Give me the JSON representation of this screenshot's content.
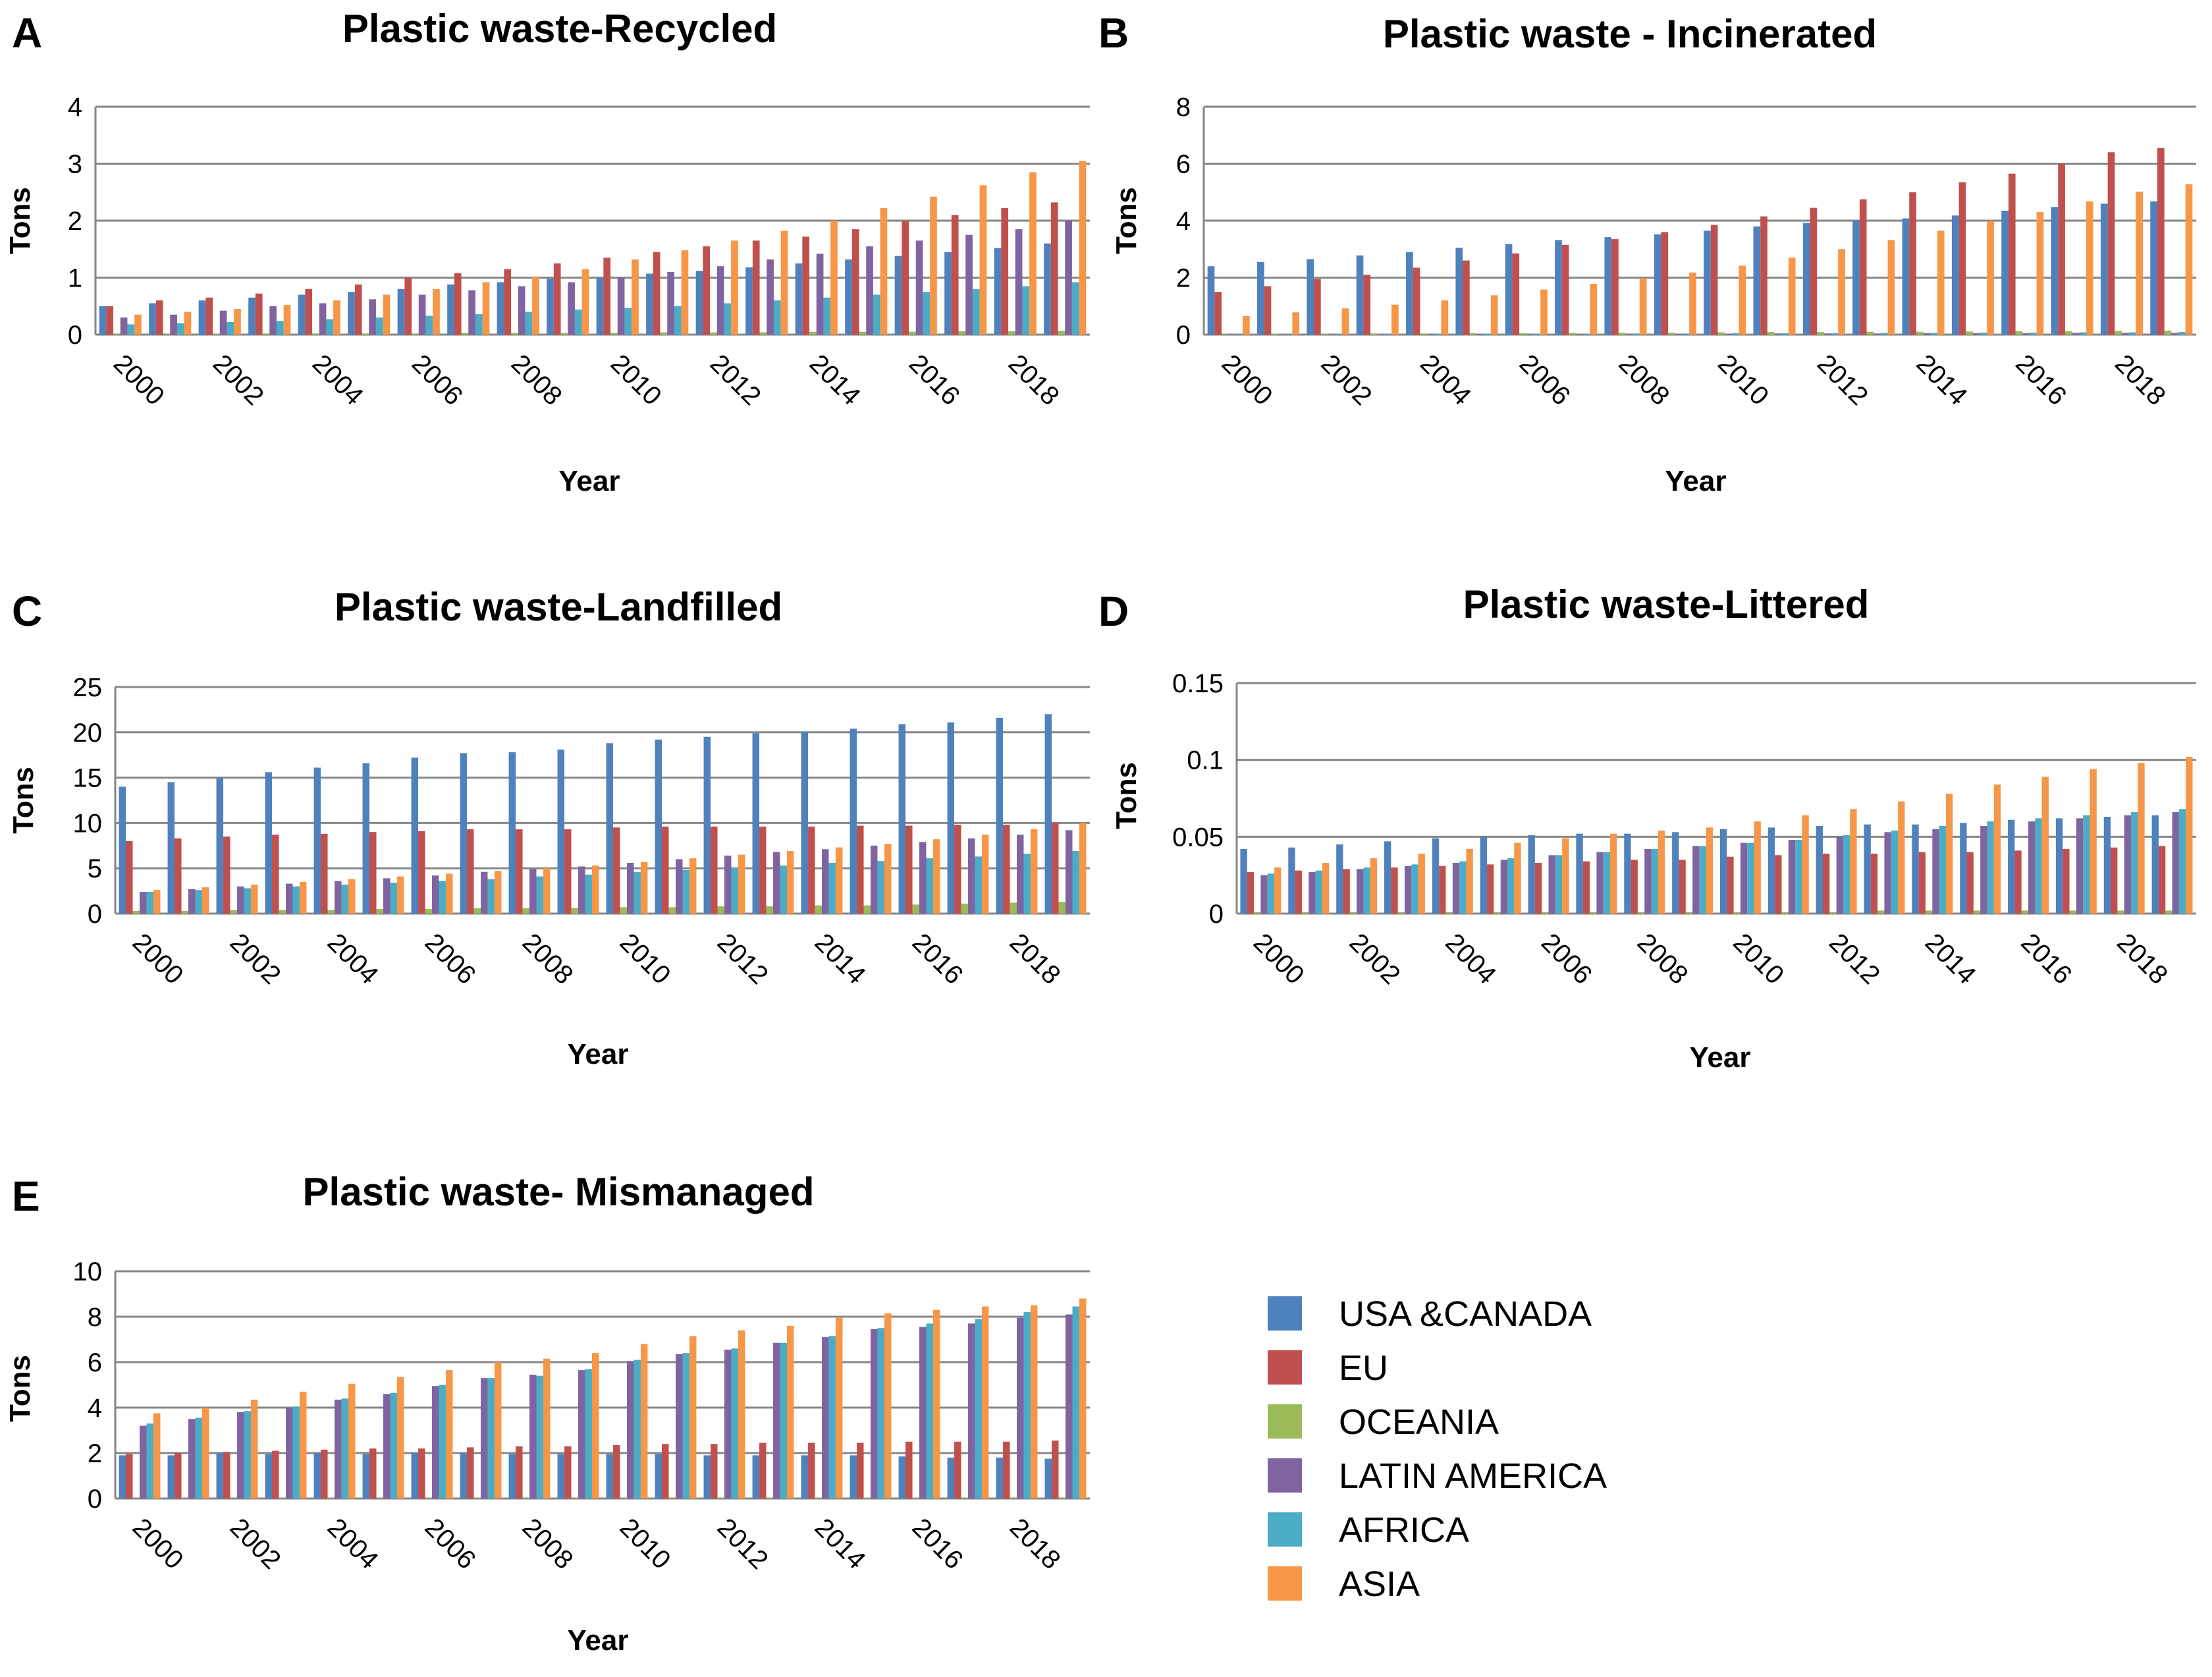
{
  "legend": {
    "items": [
      {
        "label": "USA &CANADA",
        "color": "#4F81BD"
      },
      {
        "label": "EU",
        "color": "#C0504D"
      },
      {
        "label": "OCEANIA",
        "color": "#9BBB59"
      },
      {
        "label": "LATIN AMERICA",
        "color": "#8064A2"
      },
      {
        "label": "AFRICA",
        "color": "#4BACC6"
      },
      {
        "label": "ASIA",
        "color": "#F79646"
      }
    ]
  },
  "chart_data": [
    {
      "panel": "A",
      "type": "bar",
      "title": "Plastic waste-Recycled",
      "xlabel": "Year",
      "ylabel": "Tons",
      "ylim": [
        0,
        4
      ],
      "yticks": [
        "0",
        "1",
        "2",
        "3",
        "4"
      ],
      "grid": true,
      "years": [
        2000,
        2001,
        2002,
        2003,
        2004,
        2005,
        2006,
        2007,
        2008,
        2009,
        2010,
        2011,
        2012,
        2013,
        2014,
        2015,
        2016,
        2017,
        2018,
        2019
      ],
      "xticks": [
        "2000",
        "2002",
        "2004",
        "2006",
        "2008",
        "2010",
        "2012",
        "2014",
        "2016",
        "2018"
      ],
      "series": [
        {
          "name": "USA &CANADA",
          "values": [
            0.5,
            0.55,
            0.6,
            0.65,
            0.7,
            0.75,
            0.8,
            0.88,
            0.92,
            0.98,
            1.0,
            1.07,
            1.12,
            1.18,
            1.25,
            1.32,
            1.38,
            1.45,
            1.52,
            1.6
          ]
        },
        {
          "name": "EU",
          "values": [
            0.5,
            0.6,
            0.65,
            0.72,
            0.8,
            0.88,
            1.0,
            1.08,
            1.15,
            1.25,
            1.35,
            1.45,
            1.55,
            1.65,
            1.72,
            1.85,
            2.0,
            2.1,
            2.22,
            2.32
          ]
        },
        {
          "name": "OCEANIA",
          "values": [
            0.01,
            0.01,
            0.01,
            0.02,
            0.02,
            0.02,
            0.02,
            0.03,
            0.03,
            0.03,
            0.03,
            0.04,
            0.04,
            0.04,
            0.05,
            0.05,
            0.05,
            0.06,
            0.06,
            0.07
          ]
        },
        {
          "name": "LATIN AMERICA",
          "values": [
            0.3,
            0.35,
            0.42,
            0.5,
            0.55,
            0.62,
            0.7,
            0.78,
            0.85,
            0.92,
            1.0,
            1.1,
            1.2,
            1.32,
            1.42,
            1.55,
            1.65,
            1.75,
            1.85,
            2.0
          ]
        },
        {
          "name": "AFRICA",
          "values": [
            0.18,
            0.2,
            0.22,
            0.24,
            0.27,
            0.3,
            0.33,
            0.36,
            0.4,
            0.44,
            0.47,
            0.5,
            0.55,
            0.6,
            0.65,
            0.7,
            0.75,
            0.8,
            0.85,
            0.92
          ]
        },
        {
          "name": "ASIA",
          "values": [
            0.35,
            0.4,
            0.45,
            0.52,
            0.6,
            0.7,
            0.8,
            0.92,
            1.02,
            1.15,
            1.32,
            1.48,
            1.65,
            1.82,
            2.0,
            2.22,
            2.42,
            2.62,
            2.85,
            3.05
          ]
        }
      ]
    },
    {
      "panel": "B",
      "type": "bar",
      "title": "Plastic waste - Incinerated",
      "xlabel": "Year",
      "ylabel": "Tons",
      "ylim": [
        0,
        8
      ],
      "yticks": [
        "0",
        "2",
        "4",
        "6",
        "8"
      ],
      "grid": true,
      "years": [
        2000,
        2001,
        2002,
        2003,
        2004,
        2005,
        2006,
        2007,
        2008,
        2009,
        2010,
        2011,
        2012,
        2013,
        2014,
        2015,
        2016,
        2017,
        2018,
        2019
      ],
      "xticks": [
        "2000",
        "2002",
        "2004",
        "2006",
        "2008",
        "2010",
        "2012",
        "2014",
        "2016",
        "2018"
      ],
      "series": [
        {
          "name": "USA &CANADA",
          "values": [
            2.4,
            2.55,
            2.65,
            2.78,
            2.9,
            3.05,
            3.18,
            3.32,
            3.42,
            3.52,
            3.65,
            3.8,
            3.92,
            4.0,
            4.08,
            4.18,
            4.35,
            4.48,
            4.6,
            4.68
          ]
        },
        {
          "name": "EU",
          "values": [
            1.5,
            1.7,
            1.95,
            2.1,
            2.35,
            2.6,
            2.85,
            3.15,
            3.35,
            3.6,
            3.85,
            4.15,
            4.45,
            4.75,
            5.0,
            5.35,
            5.65,
            6.0,
            6.4,
            6.55
          ]
        },
        {
          "name": "OCEANIA",
          "values": [
            0.02,
            0.03,
            0.03,
            0.04,
            0.04,
            0.05,
            0.05,
            0.06,
            0.07,
            0.07,
            0.08,
            0.09,
            0.09,
            0.1,
            0.1,
            0.11,
            0.12,
            0.12,
            0.13,
            0.14
          ]
        },
        {
          "name": "LATIN AMERICA",
          "values": [
            0.01,
            0.01,
            0.01,
            0.01,
            0.02,
            0.02,
            0.02,
            0.02,
            0.03,
            0.03,
            0.03,
            0.04,
            0.04,
            0.04,
            0.05,
            0.05,
            0.05,
            0.06,
            0.06,
            0.06
          ]
        },
        {
          "name": "AFRICA",
          "values": [
            0.01,
            0.01,
            0.02,
            0.02,
            0.02,
            0.03,
            0.03,
            0.03,
            0.04,
            0.04,
            0.05,
            0.05,
            0.05,
            0.06,
            0.06,
            0.07,
            0.07,
            0.08,
            0.08,
            0.09
          ]
        },
        {
          "name": "ASIA",
          "values": [
            0.65,
            0.78,
            0.92,
            1.05,
            1.2,
            1.38,
            1.58,
            1.78,
            1.98,
            2.18,
            2.42,
            2.7,
            3.0,
            3.32,
            3.65,
            3.98,
            4.3,
            4.68,
            5.02,
            5.28
          ]
        }
      ]
    },
    {
      "panel": "C",
      "type": "bar",
      "title": "Plastic waste-Landfilled",
      "xlabel": "Year",
      "ylabel": "Tons",
      "ylim": [
        0,
        25
      ],
      "yticks": [
        "0",
        "5",
        "10",
        "15",
        "20",
        "25"
      ],
      "grid": true,
      "years": [
        2000,
        2001,
        2002,
        2003,
        2004,
        2005,
        2006,
        2007,
        2008,
        2009,
        2010,
        2011,
        2012,
        2013,
        2014,
        2015,
        2016,
        2017,
        2018,
        2019
      ],
      "xticks": [
        "2000",
        "2002",
        "2004",
        "2006",
        "2008",
        "2010",
        "2012",
        "2014",
        "2016",
        "2018"
      ],
      "series": [
        {
          "name": "USA &CANADA",
          "values": [
            14.0,
            14.5,
            15.0,
            15.6,
            16.1,
            16.6,
            17.2,
            17.7,
            17.8,
            18.1,
            18.8,
            19.2,
            19.5,
            19.9,
            20.0,
            20.4,
            20.9,
            21.1,
            21.6,
            22.0
          ]
        },
        {
          "name": "EU",
          "values": [
            8.0,
            8.3,
            8.5,
            8.7,
            8.8,
            9.0,
            9.1,
            9.3,
            9.3,
            9.3,
            9.5,
            9.6,
            9.6,
            9.6,
            9.6,
            9.7,
            9.7,
            9.8,
            9.8,
            10.0
          ]
        },
        {
          "name": "OCEANIA",
          "values": [
            0.3,
            0.3,
            0.4,
            0.4,
            0.4,
            0.5,
            0.5,
            0.6,
            0.6,
            0.6,
            0.7,
            0.7,
            0.8,
            0.8,
            0.9,
            0.9,
            1.0,
            1.1,
            1.2,
            1.3
          ]
        },
        {
          "name": "LATIN AMERICA",
          "values": [
            2.4,
            2.7,
            3.0,
            3.3,
            3.6,
            3.9,
            4.2,
            4.6,
            4.9,
            5.2,
            5.6,
            6.0,
            6.4,
            6.8,
            7.1,
            7.5,
            7.9,
            8.3,
            8.7,
            9.2
          ]
        },
        {
          "name": "AFRICA",
          "values": [
            2.4,
            2.6,
            2.8,
            3.0,
            3.2,
            3.4,
            3.6,
            3.8,
            4.1,
            4.3,
            4.6,
            4.8,
            5.1,
            5.3,
            5.6,
            5.8,
            6.1,
            6.3,
            6.6,
            6.9
          ]
        },
        {
          "name": "ASIA",
          "values": [
            2.6,
            2.9,
            3.2,
            3.5,
            3.8,
            4.1,
            4.4,
            4.7,
            5.0,
            5.3,
            5.7,
            6.1,
            6.5,
            6.9,
            7.3,
            7.7,
            8.2,
            8.7,
            9.3,
            10.0
          ]
        }
      ]
    },
    {
      "panel": "D",
      "type": "bar",
      "title": "Plastic waste-Littered",
      "xlabel": "Year",
      "ylabel": "Tons",
      "ylim": [
        0,
        0.15
      ],
      "yticks": [
        "0",
        "0.05",
        "0.1",
        "0.15"
      ],
      "grid": true,
      "years": [
        2000,
        2001,
        2002,
        2003,
        2004,
        2005,
        2006,
        2007,
        2008,
        2009,
        2010,
        2011,
        2012,
        2013,
        2014,
        2015,
        2016,
        2017,
        2018,
        2019
      ],
      "xticks": [
        "2000",
        "2002",
        "2004",
        "2006",
        "2008",
        "2010",
        "2012",
        "2014",
        "2016",
        "2018"
      ],
      "series": [
        {
          "name": "USA &CANADA",
          "values": [
            0.042,
            0.043,
            0.045,
            0.047,
            0.049,
            0.05,
            0.051,
            0.052,
            0.052,
            0.053,
            0.055,
            0.056,
            0.057,
            0.058,
            0.058,
            0.059,
            0.061,
            0.062,
            0.063,
            0.064
          ]
        },
        {
          "name": "EU",
          "values": [
            0.027,
            0.028,
            0.029,
            0.03,
            0.031,
            0.032,
            0.033,
            0.034,
            0.035,
            0.035,
            0.037,
            0.038,
            0.039,
            0.039,
            0.04,
            0.04,
            0.041,
            0.042,
            0.043,
            0.044
          ]
        },
        {
          "name": "OCEANIA",
          "values": [
            0.001,
            0.001,
            0.001,
            0.001,
            0.001,
            0.001,
            0.001,
            0.001,
            0.001,
            0.001,
            0.001,
            0.001,
            0.001,
            0.002,
            0.002,
            0.002,
            0.002,
            0.002,
            0.002,
            0.002
          ]
        },
        {
          "name": "LATIN AMERICA",
          "values": [
            0.025,
            0.027,
            0.029,
            0.031,
            0.033,
            0.035,
            0.038,
            0.04,
            0.042,
            0.044,
            0.046,
            0.048,
            0.05,
            0.053,
            0.055,
            0.057,
            0.06,
            0.062,
            0.064,
            0.066
          ]
        },
        {
          "name": "AFRICA",
          "values": [
            0.026,
            0.028,
            0.03,
            0.032,
            0.034,
            0.036,
            0.038,
            0.04,
            0.042,
            0.044,
            0.046,
            0.048,
            0.051,
            0.054,
            0.057,
            0.06,
            0.062,
            0.064,
            0.066,
            0.068
          ]
        },
        {
          "name": "ASIA",
          "values": [
            0.03,
            0.033,
            0.036,
            0.039,
            0.042,
            0.046,
            0.049,
            0.052,
            0.054,
            0.056,
            0.06,
            0.064,
            0.068,
            0.073,
            0.078,
            0.084,
            0.089,
            0.094,
            0.098,
            0.102
          ]
        }
      ]
    },
    {
      "panel": "E",
      "type": "bar",
      "title": "Plastic waste- Mismanaged",
      "xlabel": "Year",
      "ylabel": "Tons",
      "ylim": [
        0,
        10
      ],
      "yticks": [
        "0",
        "2",
        "4",
        "6",
        "8",
        "10"
      ],
      "grid": true,
      "years": [
        2000,
        2001,
        2002,
        2003,
        2004,
        2005,
        2006,
        2007,
        2008,
        2009,
        2010,
        2011,
        2012,
        2013,
        2014,
        2015,
        2016,
        2017,
        2018,
        2019
      ],
      "xticks": [
        "2000",
        "2002",
        "2004",
        "2006",
        "2008",
        "2010",
        "2012",
        "2014",
        "2016",
        "2018"
      ],
      "series": [
        {
          "name": "USA &CANADA",
          "values": [
            1.9,
            1.9,
            2.0,
            1.95,
            2.0,
            1.95,
            2.0,
            2.0,
            1.95,
            1.95,
            1.95,
            1.95,
            1.9,
            1.9,
            1.9,
            1.9,
            1.85,
            1.8,
            1.8,
            1.75
          ]
        },
        {
          "name": "EU",
          "values": [
            1.95,
            2.0,
            2.05,
            2.1,
            2.15,
            2.2,
            2.2,
            2.25,
            2.3,
            2.3,
            2.35,
            2.4,
            2.4,
            2.45,
            2.45,
            2.45,
            2.5,
            2.5,
            2.5,
            2.55
          ]
        },
        {
          "name": "OCEANIA",
          "values": [
            0.02,
            0.02,
            0.02,
            0.02,
            0.02,
            0.02,
            0.03,
            0.03,
            0.03,
            0.03,
            0.03,
            0.03,
            0.04,
            0.04,
            0.04,
            0.04,
            0.04,
            0.05,
            0.05,
            0.05
          ]
        },
        {
          "name": "LATIN AMERICA",
          "values": [
            3.2,
            3.5,
            3.8,
            4.0,
            4.35,
            4.6,
            4.95,
            5.3,
            5.45,
            5.65,
            6.05,
            6.35,
            6.55,
            6.85,
            7.1,
            7.45,
            7.55,
            7.7,
            7.95,
            8.1
          ]
        },
        {
          "name": "AFRICA",
          "values": [
            3.3,
            3.55,
            3.85,
            4.05,
            4.4,
            4.65,
            5.0,
            5.3,
            5.4,
            5.7,
            6.1,
            6.4,
            6.6,
            6.85,
            7.15,
            7.5,
            7.7,
            7.9,
            8.2,
            8.45
          ]
        },
        {
          "name": "ASIA",
          "values": [
            3.75,
            4.0,
            4.35,
            4.7,
            5.05,
            5.35,
            5.65,
            6.0,
            6.15,
            6.4,
            6.8,
            7.15,
            7.4,
            7.6,
            7.95,
            8.15,
            8.3,
            8.45,
            8.5,
            8.8
          ]
        }
      ]
    }
  ]
}
